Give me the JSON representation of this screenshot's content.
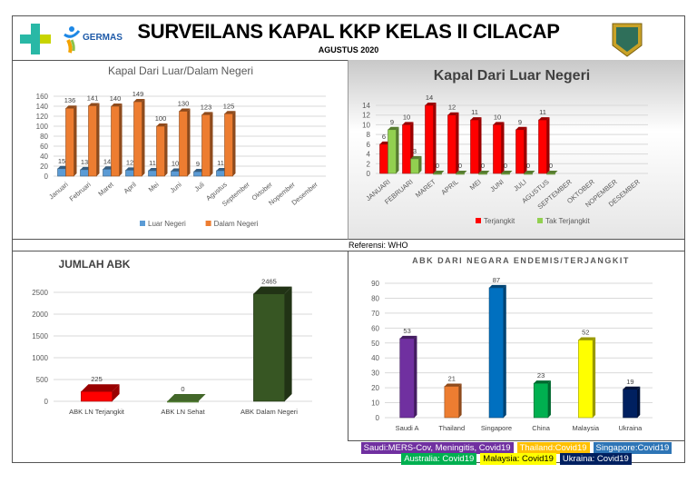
{
  "header": {
    "title": "SURVEILANS KAPAL KKP KELAS II CILACAP",
    "subtitle": "AGUSTUS 2020",
    "logos": [
      "kemenkes-logo",
      "germas-logo",
      "kkp-emblem"
    ],
    "germas_text": "GERMAS"
  },
  "reference": "Referensi: WHO",
  "chart_data": [
    {
      "id": "c1",
      "type": "bar",
      "title": "Kapal Dari Luar/Dalam Negeri",
      "categories": [
        "Januari",
        "Februari",
        "Maret",
        "April",
        "Mei",
        "Juni",
        "Juli",
        "Agustus",
        "September",
        "Oktober",
        "Nopember",
        "Desember"
      ],
      "ylim": [
        0,
        160
      ],
      "yticks": [
        0,
        20,
        40,
        60,
        80,
        100,
        120,
        140,
        160
      ],
      "grid": true,
      "legend": "bottom",
      "series": [
        {
          "name": "Luar Negeri",
          "color": "#5b9bd5",
          "values": [
            15,
            13,
            14,
            12,
            11,
            10,
            9,
            11,
            null,
            null,
            null,
            null
          ]
        },
        {
          "name": "Dalam Negeri",
          "color": "#ed7d31",
          "values": [
            136,
            141,
            140,
            149,
            100,
            130,
            123,
            125,
            null,
            null,
            null,
            null
          ]
        }
      ]
    },
    {
      "id": "c2",
      "type": "bar",
      "title": "Kapal Dari Luar Negeri",
      "categories": [
        "JANUARI",
        "FEBRUARI",
        "MARET",
        "APRIL",
        "MEI",
        "JUNI",
        "JULI",
        "AGUSTUS",
        "SEPTEMBER",
        "OKTOBER",
        "NOPEMBER",
        "DESEMBER"
      ],
      "ylim": [
        0,
        14
      ],
      "yticks": [
        0,
        2,
        4,
        6,
        8,
        10,
        12,
        14
      ],
      "grid": true,
      "legend": "bottom",
      "series": [
        {
          "name": "Terjangkit",
          "color": "#ff0000",
          "values": [
            6,
            10,
            14,
            12,
            11,
            10,
            9,
            11,
            null,
            null,
            null,
            null
          ]
        },
        {
          "name": "Tak Terjangkit",
          "color": "#92d050",
          "values": [
            9,
            3,
            0,
            0,
            0,
            0,
            0,
            0,
            null,
            null,
            null,
            null
          ]
        }
      ]
    },
    {
      "id": "c3",
      "type": "bar",
      "title": "JUMLAH ABK",
      "categories": [
        "ABK LN Terjangkit",
        "ABK LN Sehat",
        "ABK Dalam Negeri"
      ],
      "ylim": [
        0,
        2500
      ],
      "yticks": [
        0,
        500,
        1000,
        1500,
        2000,
        2500
      ],
      "grid": true,
      "colors": [
        "#ff0000",
        "#70ad47",
        "#375623"
      ],
      "values": [
        225,
        0,
        2465
      ]
    },
    {
      "id": "c4",
      "type": "bar",
      "title": "ABK DARI NEGARA ENDEMIS/TERJANGKIT",
      "categories": [
        "Saudi A",
        "Thailand",
        "Singapore",
        "China",
        "Malaysia",
        "Ukraina"
      ],
      "ylim": [
        0,
        90
      ],
      "yticks": [
        0,
        10,
        20,
        30,
        40,
        50,
        60,
        70,
        80,
        90
      ],
      "grid": true,
      "colors": [
        "#7030a0",
        "#ed7d31",
        "#0070c0",
        "#00b050",
        "#ffff00",
        "#002060"
      ],
      "values": [
        53,
        21,
        87,
        23,
        52,
        19
      ]
    }
  ],
  "endemic_legend": [
    [
      {
        "text": "Saudi:MERS-Cov, Meningitis, Covid19",
        "color": "#7030a0"
      },
      {
        "text": "Thailand:Covid19",
        "color": "#ffc000"
      },
      {
        "text": "Singapore:Covid19",
        "color": "#2e75b6"
      }
    ],
    [
      {
        "text": "Australia: Covid19",
        "color": "#00b050"
      },
      {
        "text": "Malaysia: Covid19",
        "color": "#ffff00",
        "fg": "#000"
      },
      {
        "text": "Ukraina: Covid19",
        "color": "#002060"
      }
    ]
  ]
}
